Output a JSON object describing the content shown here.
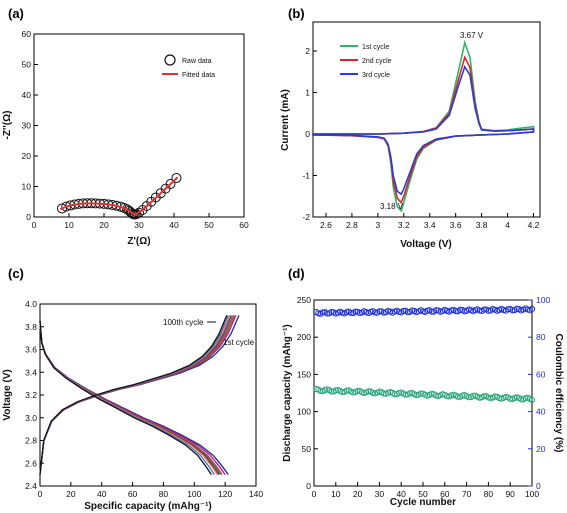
{
  "panels": [
    {
      "label": "(a)",
      "type": "scatter",
      "xlabel": "Z'(Ω)",
      "ylabel": "-Z''(Ω)",
      "xlim": [
        0,
        60
      ],
      "ylim": [
        0,
        60
      ],
      "xticks": [
        0,
        10,
        20,
        30,
        40,
        50,
        60
      ],
      "yticks": [
        0,
        10,
        20,
        30,
        40,
        50,
        60
      ],
      "legend": {
        "position": "top-right",
        "entries": [
          "Raw data",
          "Fitted data"
        ]
      },
      "series": [
        {
          "name": "Raw data",
          "style": "open-circle",
          "color": "#111111",
          "x": [
            8.0,
            9.2,
            10.4,
            11.6,
            12.8,
            14.0,
            15.2,
            16.4,
            17.6,
            18.8,
            20.0,
            21.2,
            22.4,
            23.6,
            24.8,
            25.8,
            26.6,
            27.2,
            27.6,
            28.0,
            28.4,
            28.8,
            29.3,
            30.0,
            31.0,
            32.2,
            33.5,
            34.8,
            36.2,
            37.6,
            39.0,
            40.7
          ],
          "y": [
            2.8,
            3.4,
            3.8,
            4.1,
            4.3,
            4.45,
            4.5,
            4.5,
            4.45,
            4.4,
            4.3,
            4.15,
            3.95,
            3.7,
            3.35,
            2.95,
            2.5,
            2.05,
            1.6,
            1.2,
            0.9,
            0.8,
            0.95,
            1.4,
            2.3,
            3.6,
            5.0,
            6.4,
            7.8,
            9.3,
            10.8,
            12.8
          ]
        },
        {
          "name": "Fitted data",
          "style": "line",
          "color": "#e03030",
          "x": [
            7.5,
            9.0,
            11.0,
            13.0,
            15.0,
            17.0,
            19.0,
            21.0,
            23.0,
            25.0,
            26.5,
            27.5,
            28.3,
            29.0,
            30.0,
            31.5,
            33.0,
            35.0,
            37.0,
            39.0,
            41.0
          ],
          "y": [
            2.5,
            3.3,
            3.95,
            4.3,
            4.45,
            4.45,
            4.35,
            4.15,
            3.8,
            3.2,
            2.5,
            1.8,
            1.0,
            0.9,
            1.5,
            2.9,
            4.4,
            6.5,
            8.7,
            10.8,
            13.0
          ]
        }
      ]
    },
    {
      "label": "(b)",
      "type": "line",
      "xlabel": "Voltage (V)",
      "ylabel": "Current (mA)",
      "xlim": [
        2.5,
        4.25
      ],
      "ylim": [
        -2.0,
        2.7
      ],
      "xticks": [
        2.6,
        2.8,
        3.0,
        3.2,
        3.4,
        3.6,
        3.8,
        4.0,
        4.2
      ],
      "yticks": [
        -2,
        -1,
        0,
        1,
        2
      ],
      "legend": {
        "position": "upper-left",
        "entries": [
          "1st cycle",
          "2nd cycle",
          "3rd cycle"
        ]
      },
      "annotations": [
        "3.67 V",
        "3.18 V"
      ],
      "series": [
        {
          "name": "1st cycle",
          "color": "#2fb56a",
          "anodic_x": [
            2.5,
            2.8,
            3.0,
            3.2,
            3.35,
            3.45,
            3.55,
            3.62,
            3.67,
            3.71,
            3.75,
            3.78,
            3.8,
            3.9,
            4.0,
            4.1,
            4.2
          ],
          "anodic_y": [
            0.0,
            0.0,
            0.0,
            0.02,
            0.06,
            0.15,
            0.55,
            1.5,
            2.2,
            1.85,
            0.8,
            0.3,
            0.12,
            0.08,
            0.1,
            0.14,
            0.18
          ],
          "cathodic_x": [
            4.2,
            4.0,
            3.8,
            3.6,
            3.45,
            3.35,
            3.3,
            3.25,
            3.2,
            3.18,
            3.15,
            3.12,
            3.1,
            3.08,
            3.05,
            3.0,
            2.8,
            2.5
          ],
          "cathodic_y": [
            0.05,
            0.0,
            -0.02,
            -0.05,
            -0.15,
            -0.35,
            -0.6,
            -1.1,
            -1.65,
            -1.85,
            -1.75,
            -1.3,
            -0.7,
            -0.3,
            -0.12,
            -0.08,
            -0.04,
            -0.02
          ]
        },
        {
          "name": "2nd cycle",
          "color": "#d8262b",
          "anodic_x": [
            2.5,
            2.8,
            3.0,
            3.2,
            3.35,
            3.45,
            3.55,
            3.62,
            3.67,
            3.71,
            3.75,
            3.78,
            3.8,
            3.9,
            4.0,
            4.1,
            4.2
          ],
          "anodic_y": [
            0.0,
            0.0,
            0.0,
            0.02,
            0.06,
            0.14,
            0.5,
            1.3,
            1.85,
            1.6,
            0.7,
            0.28,
            0.1,
            0.07,
            0.08,
            0.1,
            0.12
          ],
          "cathodic_x": [
            4.2,
            4.0,
            3.8,
            3.6,
            3.45,
            3.35,
            3.3,
            3.25,
            3.2,
            3.18,
            3.15,
            3.12,
            3.1,
            3.08,
            3.05,
            3.0,
            2.8,
            2.5
          ],
          "cathodic_y": [
            0.05,
            0.0,
            -0.02,
            -0.05,
            -0.14,
            -0.32,
            -0.55,
            -1.0,
            -1.5,
            -1.65,
            -1.55,
            -1.15,
            -0.62,
            -0.28,
            -0.12,
            -0.08,
            -0.04,
            -0.02
          ]
        },
        {
          "name": "3rd cycle",
          "color": "#2b3fcf",
          "anodic_x": [
            2.5,
            2.8,
            3.0,
            3.2,
            3.35,
            3.45,
            3.55,
            3.62,
            3.67,
            3.71,
            3.75,
            3.78,
            3.8,
            3.9,
            4.0,
            4.1,
            4.2
          ],
          "anodic_y": [
            0.0,
            0.0,
            0.0,
            0.02,
            0.05,
            0.12,
            0.45,
            1.15,
            1.62,
            1.42,
            0.62,
            0.25,
            0.1,
            0.07,
            0.08,
            0.1,
            0.12
          ],
          "cathodic_x": [
            4.2,
            4.0,
            3.8,
            3.6,
            3.45,
            3.35,
            3.3,
            3.25,
            3.2,
            3.18,
            3.15,
            3.12,
            3.1,
            3.08,
            3.05,
            3.0,
            2.8,
            2.5
          ],
          "cathodic_y": [
            0.05,
            0.0,
            -0.02,
            -0.05,
            -0.12,
            -0.28,
            -0.48,
            -0.9,
            -1.32,
            -1.45,
            -1.38,
            -1.02,
            -0.55,
            -0.25,
            -0.1,
            -0.07,
            -0.03,
            -0.02
          ]
        }
      ]
    },
    {
      "label": "(c)",
      "type": "line",
      "xlabel": "Specific capacity (mAhg⁻¹)",
      "ylabel": "Voltage (V)",
      "xlim": [
        0,
        140
      ],
      "ylim": [
        2.4,
        4.0
      ],
      "xticks": [
        0,
        20,
        40,
        60,
        80,
        100,
        120,
        140
      ],
      "yticks": [
        2.4,
        2.6,
        2.8,
        3.0,
        3.2,
        3.4,
        3.6,
        3.8,
        4.0
      ],
      "annotations": [
        "100th cycle",
        "1st cycle"
      ],
      "curve_colors": [
        "#1f2a8a",
        "#b5179e",
        "#d23a2a",
        "#2b8a3e",
        "#7a1fa2",
        "#e87a1a",
        "#3d6fd1",
        "#111111"
      ],
      "charge_shape": {
        "x_fraction": [
          0.0,
          0.02,
          0.06,
          0.12,
          0.2,
          0.3,
          0.4,
          0.5,
          0.6,
          0.7,
          0.8,
          0.87,
          0.92,
          0.96,
          1.0
        ],
        "voltage": [
          2.5,
          2.8,
          2.97,
          3.07,
          3.14,
          3.2,
          3.25,
          3.29,
          3.34,
          3.39,
          3.46,
          3.54,
          3.63,
          3.74,
          3.9
        ]
      },
      "discharge_shape": {
        "x_fraction": [
          0.0,
          0.01,
          0.03,
          0.08,
          0.15,
          0.25,
          0.35,
          0.45,
          0.55,
          0.65,
          0.75,
          0.85,
          0.92,
          0.97,
          1.0
        ],
        "voltage": [
          3.85,
          3.66,
          3.56,
          3.44,
          3.35,
          3.25,
          3.16,
          3.08,
          3.0,
          2.93,
          2.85,
          2.76,
          2.67,
          2.57,
          2.5
        ]
      },
      "charge_end_capacity": [
        129,
        127,
        126,
        125,
        124,
        123,
        122,
        121
      ],
      "discharge_end_capacity": [
        122,
        120,
        118,
        117,
        116,
        115,
        113,
        111
      ]
    },
    {
      "label": "(d)",
      "type": "scatter",
      "xlabel": "Cycle number",
      "ylabel": "Discharge capacity (mAhg⁻¹)",
      "ylabel_right": "Coulombic efficiency (%)",
      "xlim": [
        0,
        100
      ],
      "ylim": [
        0,
        250
      ],
      "ylim_right": [
        0,
        100
      ],
      "xticks": [
        0,
        10,
        20,
        30,
        40,
        50,
        60,
        70,
        80,
        90,
        100
      ],
      "yticks": [
        0,
        50,
        100,
        150,
        200,
        250
      ],
      "yticks_right": [
        0,
        20,
        40,
        60,
        80,
        100
      ],
      "series": [
        {
          "name": "Discharge capacity",
          "axis": "left",
          "color": "#2aa57a",
          "style": "open-circle",
          "x_start": 1,
          "x_end": 100,
          "y_start": 129,
          "y_end": 117
        },
        {
          "name": "Coulombic efficiency",
          "axis": "right",
          "color": "#1e2fd6",
          "style": "open-circle",
          "x_start": 1,
          "x_end": 100,
          "y_start": 93,
          "y_end": 95
        }
      ]
    }
  ]
}
